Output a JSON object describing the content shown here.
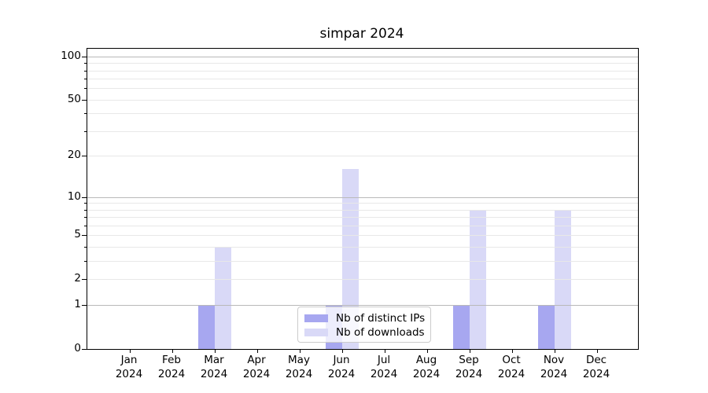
{
  "title": "simpar 2024",
  "legend": {
    "items_note": "legend labels mirror chart series names"
  },
  "axes": {
    "y_tick_labels": [
      "100",
      "50",
      "20",
      "10",
      "5",
      "2",
      "1",
      "0"
    ],
    "x_tick_labels": [
      "Jan 2024",
      "Feb 2024",
      "Mar 2024",
      "Apr 2024",
      "May 2024",
      "Jun 2024",
      "Jul 2024",
      "Aug 2024",
      "Sep 2024",
      "Oct 2024",
      "Nov 2024",
      "Dec 2024"
    ]
  },
  "colors": {
    "distinct_ips": "#a7a7f0",
    "downloads": "#d9d9f7",
    "grid_major": "#b9b9b9",
    "grid_minor": "#e8e8e8",
    "spine": "#000000",
    "legend_border": "#cccccc",
    "background": "#ffffff"
  },
  "chart_data": {
    "type": "bar",
    "title": "simpar 2024",
    "categories": [
      "Jan 2024",
      "Feb 2024",
      "Mar 2024",
      "Apr 2024",
      "May 2024",
      "Jun 2024",
      "Jul 2024",
      "Aug 2024",
      "Sep 2024",
      "Oct 2024",
      "Nov 2024",
      "Dec 2024"
    ],
    "series": [
      {
        "name": "Nb of distinct IPs",
        "color": "#a7a7f0",
        "values": [
          0,
          0,
          1,
          0,
          0,
          1,
          0,
          0,
          1,
          0,
          1,
          0
        ]
      },
      {
        "name": "Nb of downloads",
        "color": "#d9d9f7",
        "values": [
          0,
          0,
          4,
          0,
          0,
          16,
          0,
          0,
          8,
          0,
          8,
          0
        ]
      }
    ],
    "xlabel": "",
    "ylabel": "",
    "yscale": "log1p",
    "ylim": [
      0,
      113
    ],
    "yticks_labeled": [
      0,
      1,
      2,
      5,
      10,
      20,
      50,
      100
    ],
    "yticks_minor": [
      3,
      4,
      6,
      7,
      8,
      9,
      30,
      40,
      60,
      70,
      80,
      90
    ],
    "gridlines_major": [
      1,
      10,
      100
    ],
    "gridlines_minor": [
      2,
      3,
      4,
      5,
      6,
      7,
      8,
      9,
      20,
      30,
      40,
      50,
      60,
      70,
      80,
      90
    ],
    "grid": true,
    "legend_position": "lower center (inside axes)"
  }
}
